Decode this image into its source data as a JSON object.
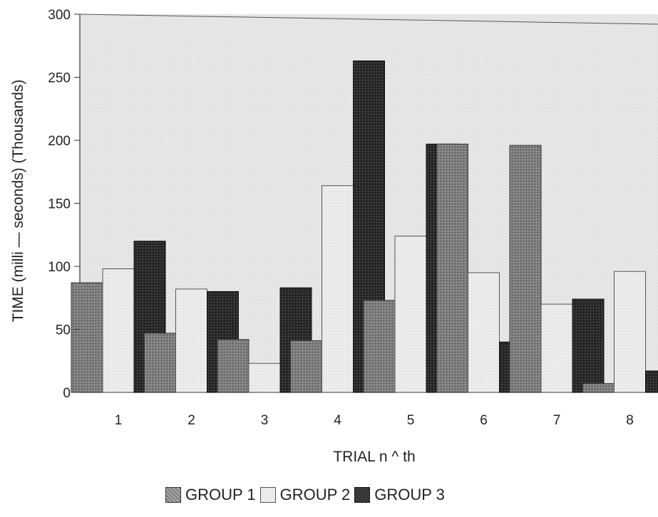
{
  "chart_data": {
    "type": "bar",
    "title": "",
    "xlabel": "TRIAL n ^ th",
    "ylabel": "TIME (milli — seconds) (Thousands)",
    "categories": [
      "1",
      "2",
      "3",
      "4",
      "5",
      "6",
      "7",
      "8"
    ],
    "yticks": [
      "0",
      "50",
      "100",
      "150",
      "200",
      "250",
      "300"
    ],
    "ylim": [
      0,
      300
    ],
    "series": [
      {
        "name": "GROUP 1",
        "color": "#7c7c7c",
        "values": [
          87,
          47,
          42,
          41,
          73,
          197,
          196,
          7
        ]
      },
      {
        "name": "GROUP 2",
        "color": "#ebebeb",
        "values": [
          98,
          82,
          23,
          164,
          124,
          95,
          70,
          96
        ]
      },
      {
        "name": "GROUP 3",
        "color": "#2a2a2a",
        "values": [
          120,
          80,
          83,
          263,
          197,
          40,
          74,
          17
        ]
      }
    ],
    "legend_position": "bottom",
    "grid": false
  }
}
